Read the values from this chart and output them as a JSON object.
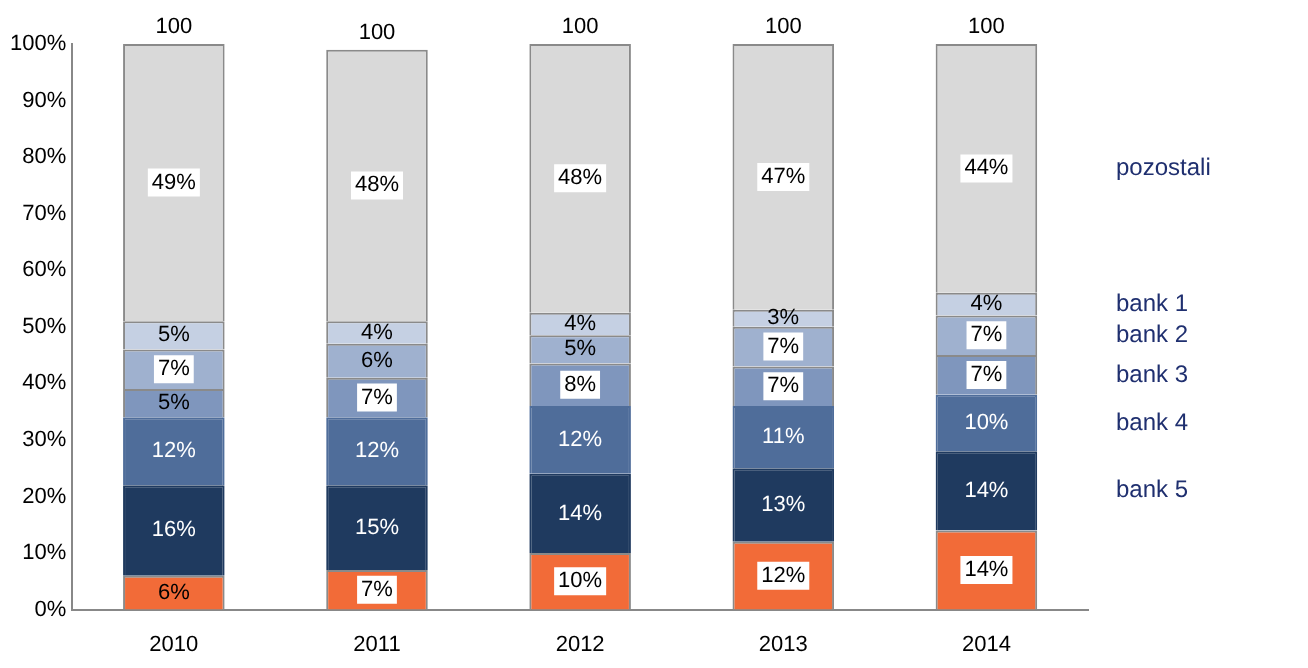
{
  "chart_data": {
    "type": "bar",
    "stacked": true,
    "categories": [
      "2010",
      "2011",
      "2012",
      "2013",
      "2014"
    ],
    "ylim": [
      0,
      100
    ],
    "yticks": [
      {
        "value": 0,
        "label": "0%"
      },
      {
        "value": 10,
        "label": "10%"
      },
      {
        "value": 20,
        "label": "20%"
      },
      {
        "value": 30,
        "label": "30%"
      },
      {
        "value": 40,
        "label": "40%"
      },
      {
        "value": 50,
        "label": "50%"
      },
      {
        "value": 60,
        "label": "60%"
      },
      {
        "value": 70,
        "label": "70%"
      },
      {
        "value": 80,
        "label": "80%"
      },
      {
        "value": 90,
        "label": "90%"
      },
      {
        "value": 100,
        "label": "100%"
      }
    ],
    "grid": false,
    "totals": [
      "100",
      "100",
      "100",
      "100",
      "100"
    ],
    "series": [
      {
        "color": "#f26b38",
        "values": [
          6,
          7,
          10,
          12,
          14
        ],
        "value_labels": [
          "6%",
          "7%",
          "10%",
          "12%",
          "14%"
        ]
      },
      {
        "name": "bank 5",
        "color": "#1f3a5f",
        "values": [
          16,
          15,
          14,
          13,
          14
        ],
        "value_labels": [
          "16%",
          "15%",
          "14%",
          "13%",
          "14%"
        ]
      },
      {
        "name": "bank 4",
        "color": "#4f6d9a",
        "values": [
          12,
          12,
          12,
          11,
          10
        ],
        "value_labels": [
          "12%",
          "12%",
          "12%",
          "11%",
          "10%"
        ]
      },
      {
        "name": "bank 3",
        "color": "#7f96bd",
        "values": [
          5,
          7,
          7.5,
          7,
          7
        ],
        "value_labels": [
          "5%",
          "7%",
          "8%",
          "7%",
          "7%"
        ]
      },
      {
        "name": "bank 2",
        "color": "#9fb1cf",
        "values": [
          7,
          6,
          5,
          7,
          7
        ],
        "value_labels": [
          "7%",
          "6%",
          "5%",
          "7%",
          "7%"
        ]
      },
      {
        "name": "bank 1",
        "color": "#c5d0e3",
        "values": [
          5,
          4,
          4,
          3,
          4
        ],
        "value_labels": [
          "5%",
          "4%",
          "4%",
          "3%",
          "4%"
        ]
      },
      {
        "name": "pozostali",
        "color": "#d9d9d9",
        "values": [
          49,
          48,
          47.5,
          47,
          44
        ],
        "value_labels": [
          "49%",
          "48%",
          "48%",
          "47%",
          "44%"
        ]
      }
    ]
  }
}
